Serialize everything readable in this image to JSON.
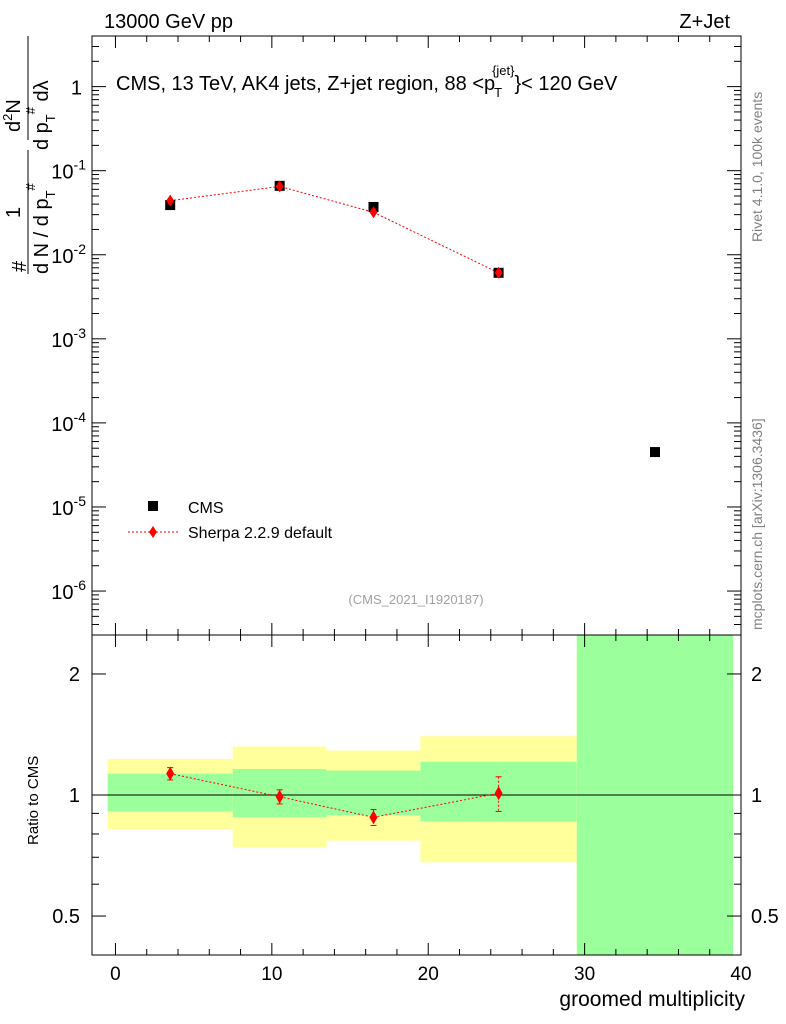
{
  "header": {
    "left": "13000 GeV pp",
    "right": "Z+Jet"
  },
  "side": {
    "rivet": "Rivet 4.1.0,  100k events",
    "mcplots": "mcplots.cern.ch [arXiv:1306.3436]"
  },
  "colors": {
    "data": "#000000",
    "mc": "#ff0000",
    "band_inner": "#9bff9b",
    "band_outer": "#ffff9b"
  },
  "chart_data": {
    "type": "scatter",
    "title": "CMS, 13 TeV, AK4 jets, Z+jet region, 88 <p_T^{jet}< 120 GeV",
    "title_parts": {
      "pre": "CMS, 13 TeV, AK4 jets, Z+jet region, 88 <p",
      "sup": "{jet}",
      "sub": "T",
      "post": "}< 120 GeV"
    },
    "analysis_tag": "(CMS_2021_I1920187)",
    "xlabel": "groomed multiplicity",
    "ylabel_upper": {
      "frac_top": "1",
      "frac_bottom": "d N / d p_T^#",
      "deriv_top": "d^2N",
      "deriv_bottom": "d p_T^# dλ",
      "prefix": "#"
    },
    "ylabel_upper_text": "# 1/(d N / d p_T^#) d²N/(d p_T^# dλ)",
    "ylabel_lower": "Ratio to CMS",
    "xlim": [
      -1.5,
      40
    ],
    "x_ticks": [
      "0",
      "10",
      "20",
      "30",
      "40"
    ],
    "upper": {
      "scale": "log",
      "ylim": [
        3e-07,
        4
      ],
      "y_tick_labels": [
        {
          "base": "10",
          "exp": "-6",
          "v": 1e-06
        },
        {
          "base": "10",
          "exp": "-5",
          "v": 1e-05
        },
        {
          "base": "10",
          "exp": "-4",
          "v": 0.0001
        },
        {
          "base": "10",
          "exp": "-3",
          "v": 0.001
        },
        {
          "base": "10",
          "exp": "-2",
          "v": 0.01
        },
        {
          "base": "10",
          "exp": "-1",
          "v": 0.1
        },
        {
          "base": "1",
          "exp": "",
          "v": 1
        }
      ]
    },
    "lower": {
      "scale": "log",
      "ylim": [
        0.4,
        2.5
      ],
      "y_tick_labels": [
        {
          "label": "0.5",
          "v": 0.5
        },
        {
          "label": "1",
          "v": 1
        },
        {
          "label": "2",
          "v": 2
        }
      ]
    },
    "series": [
      {
        "name": "CMS",
        "marker": "square",
        "x": [
          3.5,
          10.5,
          16.5,
          24.5,
          34.5
        ],
        "y": [
          0.039,
          0.066,
          0.037,
          0.0061,
          4.5e-05
        ]
      },
      {
        "name": "Sherpa 2.2.9 default",
        "marker": "diamond",
        "x": [
          3.5,
          10.5,
          16.5,
          24.5
        ],
        "y": [
          0.044,
          0.065,
          0.032,
          0.0061
        ]
      }
    ],
    "ratio": {
      "x": [
        3.5,
        10.5,
        16.5,
        24.5
      ],
      "y": [
        1.13,
        0.99,
        0.88,
        1.01
      ],
      "err": [
        0.04,
        0.04,
        0.04,
        0.1
      ]
    },
    "bands": [
      {
        "x": [
          -0.5,
          7.5
        ],
        "inner": [
          0.91,
          1.13
        ],
        "outer": [
          0.82,
          1.23
        ]
      },
      {
        "x": [
          7.5,
          13.5
        ],
        "inner": [
          0.88,
          1.16
        ],
        "outer": [
          0.74,
          1.32
        ]
      },
      {
        "x": [
          13.5,
          19.5
        ],
        "inner": [
          0.89,
          1.15
        ],
        "outer": [
          0.77,
          1.29
        ]
      },
      {
        "x": [
          19.5,
          29.5
        ],
        "inner": [
          0.86,
          1.21
        ],
        "outer": [
          0.68,
          1.4
        ]
      },
      {
        "x": [
          29.5,
          39.5
        ],
        "inner": [
          0.4,
          2.5
        ],
        "outer": [
          0.4,
          2.5
        ]
      }
    ],
    "grid": false,
    "legend_position": "bottom-left"
  }
}
